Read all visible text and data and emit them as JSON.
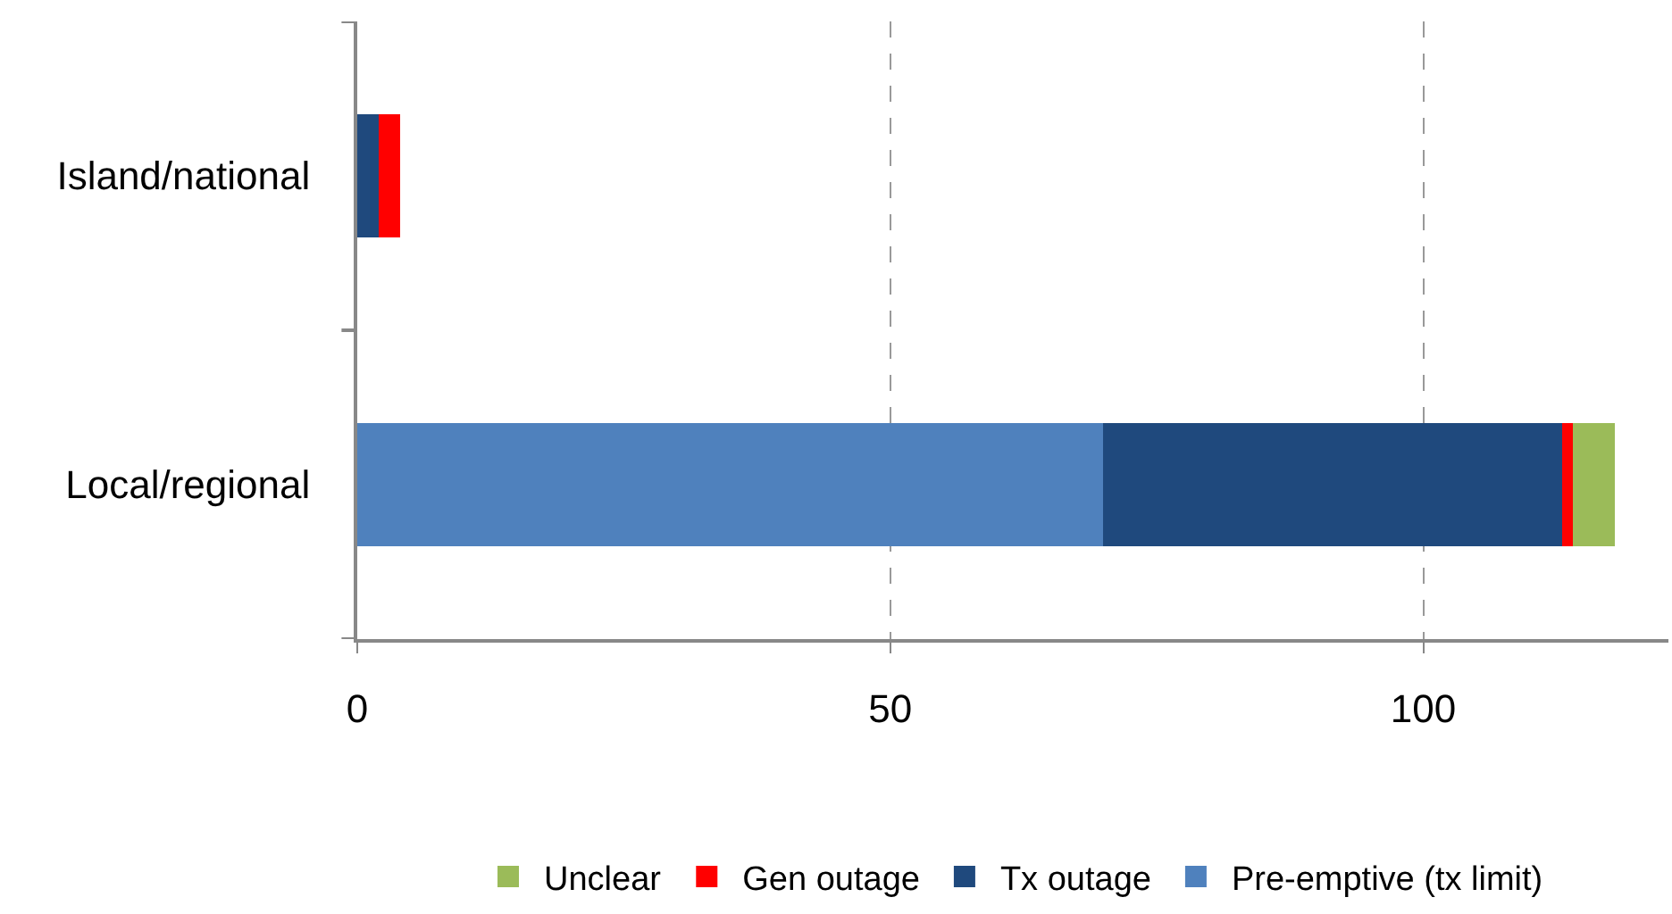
{
  "chart_data": {
    "type": "bar",
    "orientation": "horizontal",
    "stacked": true,
    "categories": [
      "Island/national",
      "Local/regional"
    ],
    "series": [
      {
        "name": "Pre-emptive (tx limit)",
        "color": "#4f81bd",
        "values": [
          0,
          70
        ]
      },
      {
        "name": "Tx outage",
        "color": "#1f497d",
        "values": [
          2,
          43
        ]
      },
      {
        "name": "Gen outage",
        "color": "#ff0000",
        "values": [
          2,
          1
        ]
      },
      {
        "name": "Unclear",
        "color": "#9bbb59",
        "values": [
          0,
          4
        ]
      }
    ],
    "xlim": [
      0,
      123
    ],
    "xticks": [
      0,
      50,
      100
    ],
    "grid": "x",
    "legend": "bottom"
  }
}
